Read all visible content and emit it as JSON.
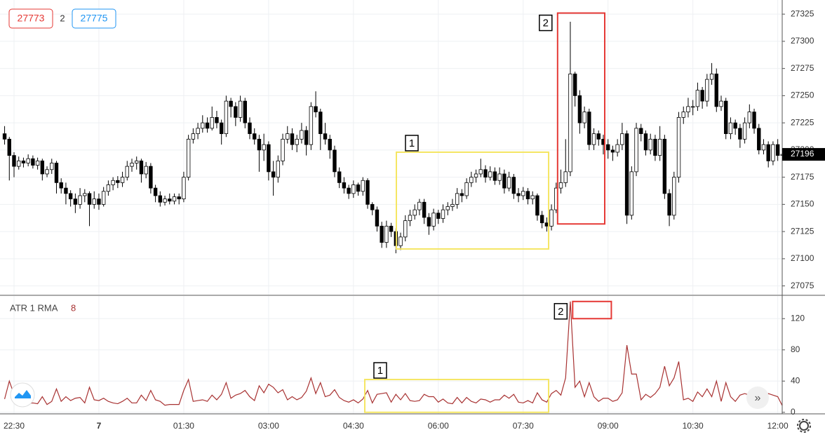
{
  "header": {
    "bid": "27773",
    "spread": "2",
    "ask": "27775"
  },
  "chart_data": {
    "type": "candlestick",
    "ylim": [
      27067,
      27338
    ],
    "yticks": [
      27075,
      27100,
      27125,
      27150,
      27175,
      27200,
      27225,
      27250,
      27275,
      27300,
      27325
    ],
    "xticks": [
      {
        "value": 2,
        "label": "22:30"
      },
      {
        "value": 20,
        "label": "7"
      },
      {
        "value": 38,
        "label": "01:30"
      },
      {
        "value": 56,
        "label": "03:00"
      },
      {
        "value": 74,
        "label": "04:30"
      },
      {
        "value": 92,
        "label": "06:00"
      },
      {
        "value": 110,
        "label": "07:30"
      },
      {
        "value": 128,
        "label": "09:00"
      },
      {
        "value": 146,
        "label": "10:30"
      },
      {
        "value": 164,
        "label": "12:00"
      }
    ],
    "grid": true,
    "up_color": "#ffffff",
    "down_color": "#000000",
    "candles": [
      [
        27215,
        27222,
        27205,
        27210
      ],
      [
        27210,
        27212,
        27172,
        27195
      ],
      [
        27195,
        27198,
        27175,
        27185
      ],
      [
        27185,
        27194,
        27182,
        27190
      ],
      [
        27190,
        27193,
        27184,
        27188
      ],
      [
        27188,
        27196,
        27185,
        27192
      ],
      [
        27192,
        27195,
        27183,
        27186
      ],
      [
        27186,
        27193,
        27182,
        27190
      ],
      [
        27190,
        27192,
        27172,
        27178
      ],
      [
        27178,
        27185,
        27175,
        27182
      ],
      [
        27182,
        27192,
        27178,
        27188
      ],
      [
        27188,
        27190,
        27160,
        27170
      ],
      [
        27170,
        27174,
        27160,
        27165
      ],
      [
        27165,
        27170,
        27150,
        27160
      ],
      [
        27160,
        27163,
        27148,
        27155
      ],
      [
        27155,
        27160,
        27142,
        27150
      ],
      [
        27150,
        27165,
        27146,
        27158
      ],
      [
        27158,
        27164,
        27152,
        27160
      ],
      [
        27160,
        27162,
        27130,
        27150
      ],
      [
        27150,
        27162,
        27146,
        27155
      ],
      [
        27155,
        27160,
        27145,
        27150
      ],
      [
        27150,
        27166,
        27148,
        27162
      ],
      [
        27162,
        27172,
        27158,
        27168
      ],
      [
        27168,
        27175,
        27163,
        27172
      ],
      [
        27172,
        27176,
        27165,
        27170
      ],
      [
        27170,
        27180,
        27166,
        27175
      ],
      [
        27175,
        27190,
        27172,
        27185
      ],
      [
        27185,
        27192,
        27180,
        27188
      ],
      [
        27188,
        27194,
        27182,
        27190
      ],
      [
        27190,
        27192,
        27170,
        27178
      ],
      [
        27178,
        27189,
        27174,
        27185
      ],
      [
        27185,
        27188,
        27160,
        27165
      ],
      [
        27165,
        27168,
        27152,
        27158
      ],
      [
        27158,
        27162,
        27148,
        27152
      ],
      [
        27152,
        27158,
        27149,
        27155
      ],
      [
        27155,
        27160,
        27150,
        27153
      ],
      [
        27153,
        27160,
        27150,
        27157
      ],
      [
        27157,
        27160,
        27150,
        27155
      ],
      [
        27155,
        27180,
        27152,
        27175
      ],
      [
        27175,
        27214,
        27172,
        27210
      ],
      [
        27210,
        27220,
        27206,
        27215
      ],
      [
        27215,
        27225,
        27210,
        27220
      ],
      [
        27220,
        27232,
        27216,
        27225
      ],
      [
        27225,
        27230,
        27216,
        27220
      ],
      [
        27220,
        27240,
        27218,
        27230
      ],
      [
        27230,
        27236,
        27220,
        27225
      ],
      [
        27225,
        27228,
        27205,
        27215
      ],
      [
        27215,
        27250,
        27212,
        27245
      ],
      [
        27245,
        27248,
        27230,
        27240
      ],
      [
        27240,
        27244,
        27222,
        27230
      ],
      [
        27230,
        27250,
        27226,
        27245
      ],
      [
        27245,
        27248,
        27220,
        27225
      ],
      [
        27225,
        27230,
        27210,
        27215
      ],
      [
        27215,
        27220,
        27205,
        27210
      ],
      [
        27210,
        27214,
        27180,
        27200
      ],
      [
        27200,
        27215,
        27190,
        27205
      ],
      [
        27205,
        27208,
        27172,
        27180
      ],
      [
        27180,
        27190,
        27158,
        27175
      ],
      [
        27175,
        27195,
        27170,
        27190
      ],
      [
        27190,
        27215,
        27186,
        27210
      ],
      [
        27210,
        27222,
        27206,
        27215
      ],
      [
        27215,
        27220,
        27200,
        27205
      ],
      [
        27205,
        27214,
        27198,
        27210
      ],
      [
        27210,
        27225,
        27206,
        27218
      ],
      [
        27218,
        27222,
        27195,
        27205
      ],
      [
        27205,
        27244,
        27200,
        27240
      ],
      [
        27240,
        27254,
        27230,
        27235
      ],
      [
        27235,
        27238,
        27200,
        27215
      ],
      [
        27215,
        27225,
        27205,
        27210
      ],
      [
        27210,
        27214,
        27192,
        27200
      ],
      [
        27200,
        27204,
        27175,
        27180
      ],
      [
        27180,
        27184,
        27165,
        27170
      ],
      [
        27170,
        27175,
        27160,
        27165
      ],
      [
        27165,
        27168,
        27155,
        27160
      ],
      [
        27160,
        27172,
        27156,
        27168
      ],
      [
        27168,
        27170,
        27158,
        27162
      ],
      [
        27162,
        27175,
        27158,
        27172
      ],
      [
        27172,
        27174,
        27146,
        27150
      ],
      [
        27150,
        27152,
        27140,
        27145
      ],
      [
        27145,
        27148,
        27125,
        27130
      ],
      [
        27130,
        27134,
        27110,
        27115
      ],
      [
        27115,
        27135,
        27110,
        27130
      ],
      [
        27130,
        27133,
        27120,
        27125
      ],
      [
        27125,
        27128,
        27105,
        27112
      ],
      [
        27112,
        27124,
        27108,
        27120
      ],
      [
        27120,
        27140,
        27116,
        27135
      ],
      [
        27135,
        27145,
        27130,
        27140
      ],
      [
        27140,
        27150,
        27136,
        27145
      ],
      [
        27145,
        27155,
        27140,
        27152
      ],
      [
        27152,
        27155,
        27132,
        27138
      ],
      [
        27138,
        27142,
        27122,
        27130
      ],
      [
        27130,
        27146,
        27126,
        27142
      ],
      [
        27142,
        27145,
        27132,
        27137
      ],
      [
        27137,
        27150,
        27133,
        27145
      ],
      [
        27145,
        27152,
        27140,
        27148
      ],
      [
        27148,
        27155,
        27144,
        27150
      ],
      [
        27150,
        27165,
        27146,
        27160
      ],
      [
        27160,
        27164,
        27152,
        27158
      ],
      [
        27158,
        27174,
        27155,
        27170
      ],
      [
        27170,
        27180,
        27166,
        27175
      ],
      [
        27175,
        27182,
        27170,
        27178
      ],
      [
        27178,
        27192,
        27175,
        27182
      ],
      [
        27182,
        27186,
        27170,
        27175
      ],
      [
        27175,
        27185,
        27172,
        27180
      ],
      [
        27180,
        27184,
        27168,
        27172
      ],
      [
        27172,
        27184,
        27168,
        27178
      ],
      [
        27178,
        27182,
        27160,
        27165
      ],
      [
        27165,
        27180,
        27162,
        27175
      ],
      [
        27175,
        27178,
        27155,
        27160
      ],
      [
        27160,
        27165,
        27152,
        27158
      ],
      [
        27158,
        27166,
        27154,
        27162
      ],
      [
        27162,
        27165,
        27150,
        27155
      ],
      [
        27155,
        27162,
        27150,
        27158
      ],
      [
        27158,
        27160,
        27135,
        27140
      ],
      [
        27140,
        27144,
        27128,
        27133
      ],
      [
        27133,
        27138,
        27125,
        27130
      ],
      [
        27130,
        27150,
        27126,
        27145
      ],
      [
        27145,
        27170,
        27142,
        27165
      ],
      [
        27165,
        27182,
        27160,
        27170
      ],
      [
        27170,
        27210,
        27166,
        27180
      ],
      [
        27180,
        27318,
        27176,
        27270
      ],
      [
        27270,
        27272,
        27240,
        27250
      ],
      [
        27250,
        27255,
        27215,
        27225
      ],
      [
        27225,
        27240,
        27220,
        27235
      ],
      [
        27235,
        27238,
        27200,
        27205
      ],
      [
        27205,
        27220,
        27200,
        27215
      ],
      [
        27215,
        27218,
        27204,
        27210
      ],
      [
        27210,
        27214,
        27196,
        27205
      ],
      [
        27205,
        27210,
        27192,
        27200
      ],
      [
        27200,
        27204,
        27190,
        27198
      ],
      [
        27198,
        27210,
        27194,
        27205
      ],
      [
        27205,
        27225,
        27200,
        27215
      ],
      [
        27215,
        27218,
        27132,
        27140
      ],
      [
        27140,
        27185,
        27136,
        27180
      ],
      [
        27180,
        27225,
        27176,
        27220
      ],
      [
        27220,
        27224,
        27208,
        27215
      ],
      [
        27215,
        27218,
        27195,
        27200
      ],
      [
        27200,
        27215,
        27196,
        27210
      ],
      [
        27210,
        27214,
        27190,
        27195
      ],
      [
        27195,
        27222,
        27190,
        27210
      ],
      [
        27210,
        27214,
        27155,
        27160
      ],
      [
        27160,
        27164,
        27130,
        27140
      ],
      [
        27140,
        27180,
        27136,
        27175
      ],
      [
        27175,
        27235,
        27170,
        27230
      ],
      [
        27230,
        27240,
        27224,
        27235
      ],
      [
        27235,
        27248,
        27230,
        27240
      ],
      [
        27240,
        27246,
        27232,
        27240
      ],
      [
        27240,
        27262,
        27236,
        27255
      ],
      [
        27255,
        27258,
        27238,
        27245
      ],
      [
        27245,
        27270,
        27240,
        27265
      ],
      [
        27265,
        27280,
        27260,
        27270
      ],
      [
        27270,
        27275,
        27235,
        27240
      ],
      [
        27240,
        27250,
        27236,
        27245
      ],
      [
        27245,
        27248,
        27210,
        27215
      ],
      [
        27215,
        27230,
        27210,
        27225
      ],
      [
        27225,
        27228,
        27214,
        27220
      ],
      [
        27220,
        27224,
        27202,
        27210
      ],
      [
        27210,
        27230,
        27206,
        27225
      ],
      [
        27225,
        27242,
        27220,
        27235
      ],
      [
        27235,
        27238,
        27215,
        27220
      ],
      [
        27220,
        27224,
        27196,
        27200
      ],
      [
        27200,
        27210,
        27196,
        27205
      ],
      [
        27205,
        27208,
        27184,
        27190
      ],
      [
        27190,
        27208,
        27186,
        27205
      ],
      [
        27205,
        27210,
        27190,
        27195
      ],
      [
        27195,
        27198,
        27190,
        27196
      ]
    ],
    "last_price_label": "27196",
    "boxes": [
      {
        "label": "1",
        "color": "#f5e663",
        "x": [
          83.1,
          115.4
        ],
        "y": [
          27109,
          27198
        ],
        "label_side": "top"
      },
      {
        "label": "2",
        "color": "#e53935",
        "x": [
          117.3,
          127.3
        ],
        "y": [
          27132,
          27326
        ],
        "label_side": "left"
      }
    ],
    "indicator": {
      "type": "line",
      "name": "ATR 1 RMA",
      "color": "#a83232",
      "ylim": [
        -2,
        149
      ],
      "yticks": [
        0,
        40,
        80,
        120
      ],
      "values": [
        17,
        40,
        23,
        12,
        9,
        11,
        12,
        11,
        20,
        10,
        14,
        30,
        14,
        20,
        15,
        18,
        19,
        12,
        32,
        16,
        15,
        18,
        14,
        12,
        11,
        14,
        18,
        12,
        12,
        22,
        15,
        28,
        16,
        14,
        9,
        10,
        10,
        10,
        28,
        42,
        14,
        15,
        16,
        14,
        22,
        16,
        23,
        38,
        18,
        22,
        24,
        28,
        20,
        15,
        34,
        25,
        36,
        32,
        25,
        29,
        16,
        20,
        16,
        19,
        27,
        44,
        24,
        38,
        20,
        22,
        29,
        19,
        15,
        13,
        16,
        12,
        17,
        28,
        12,
        23,
        24,
        25,
        13,
        23,
        16,
        24,
        15,
        14,
        15,
        23,
        20,
        20,
        13,
        17,
        12,
        11,
        19,
        12,
        19,
        14,
        12,
        17,
        16,
        13,
        16,
        16,
        22,
        18,
        23,
        13,
        12,
        15,
        12,
        25,
        16,
        13,
        24,
        28,
        22,
        44,
        142,
        32,
        40,
        20,
        38,
        20,
        14,
        18,
        18,
        14,
        16,
        25,
        86,
        49,
        49,
        16,
        23,
        19,
        24,
        32,
        59,
        34,
        44,
        65,
        16,
        18,
        14,
        26,
        20,
        30,
        20,
        40,
        14,
        38,
        20,
        14,
        22,
        24,
        22,
        23,
        28,
        14,
        24,
        22,
        20,
        8
      ],
      "boxes": [
        {
          "label": "1",
          "color": "#f5e663",
          "x": [
            76.4,
            115.4
          ],
          "y": [
            0,
            42
          ],
          "label_side": "top"
        },
        {
          "label": "2",
          "color": "#e53935",
          "x": [
            120.5,
            128.7
          ],
          "y": [
            120,
            142
          ],
          "label_side": "left"
        }
      ]
    }
  }
}
